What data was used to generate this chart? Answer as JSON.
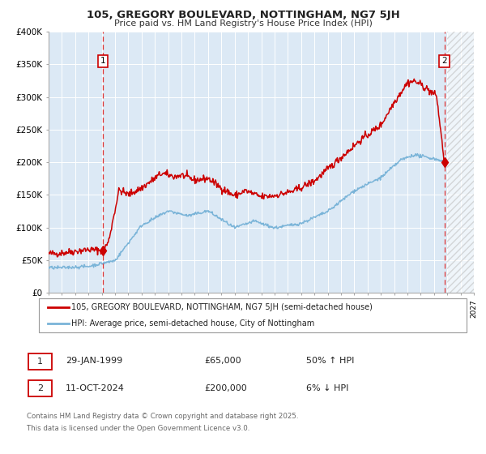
{
  "title": "105, GREGORY BOULEVARD, NOTTINGHAM, NG7 5JH",
  "subtitle": "Price paid vs. HM Land Registry's House Price Index (HPI)",
  "bg_color": "#dce9f5",
  "fig_bg_color": "#ffffff",
  "grid_color": "#ffffff",
  "red_color": "#cc0000",
  "blue_color": "#7ab4d8",
  "dashed_color": "#dd3333",
  "ylim": [
    0,
    400000
  ],
  "yticks": [
    0,
    50000,
    100000,
    150000,
    200000,
    250000,
    300000,
    350000,
    400000
  ],
  "ytick_labels": [
    "£0",
    "£50K",
    "£100K",
    "£150K",
    "£200K",
    "£250K",
    "£300K",
    "£350K",
    "£400K"
  ],
  "xmin": 1995.0,
  "xmax": 2027.0,
  "hatch_start": 2025.0,
  "t1_year": 1999.083,
  "t1_price": 65000,
  "t1_label": "1",
  "t1_date": "29-JAN-1999",
  "t1_price_str": "£65,000",
  "t1_hpi": "50% ↑ HPI",
  "t2_year": 2024.783,
  "t2_price": 200000,
  "t2_label": "2",
  "t2_date": "11-OCT-2024",
  "t2_price_str": "£200,000",
  "t2_hpi": "6% ↓ HPI",
  "legend_line1": "105, GREGORY BOULEVARD, NOTTINGHAM, NG7 5JH (semi-detached house)",
  "legend_line2": "HPI: Average price, semi-detached house, City of Nottingham",
  "footnote_line1": "Contains HM Land Registry data © Crown copyright and database right 2025.",
  "footnote_line2": "This data is licensed under the Open Government Licence v3.0."
}
